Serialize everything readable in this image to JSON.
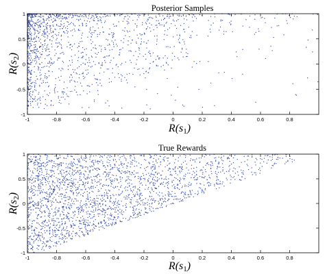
{
  "chart_data": [
    {
      "type": "scatter",
      "title": "Posterior Samples",
      "xlabel": "R(s",
      "xlabel_sub": "1",
      "xlabel_close": ")",
      "ylabel": "R(s",
      "ylabel_sub": "2",
      "ylabel_close": ")",
      "xlim": [
        -1,
        1
      ],
      "ylim": [
        -1,
        1
      ],
      "xticks": [
        "-1",
        "-0.8",
        "-0.6",
        "-0.4",
        "-0.2",
        "0",
        "0.2",
        "0.4",
        "0.6",
        "0.8"
      ],
      "yticks": [
        "1",
        "0.5",
        "0",
        "-0.5",
        "-1"
      ],
      "grid": false,
      "point_color": "#3a4fb0",
      "series": [
        {
          "distribution": "samples concentrated near top-left, sparse toward right",
          "point_count": 1500,
          "seed": 11,
          "points": []
        }
      ]
    },
    {
      "type": "scatter",
      "title": "True Rewards",
      "xlabel": "R(s",
      "xlabel_sub": "1",
      "xlabel_close": ")",
      "ylabel": "R(s",
      "ylabel_sub": "2",
      "ylabel_close": ")",
      "xlim": [
        -1,
        1
      ],
      "ylim": [
        -1,
        1
      ],
      "xticks": [
        "-1",
        "-0.8",
        "-0.6",
        "-0.4",
        "-0.2",
        "0",
        "0.2",
        "0.4",
        "0.6",
        "0.8"
      ],
      "yticks": [
        "1",
        "0.5",
        "0",
        "-0.5",
        "-1"
      ],
      "grid": false,
      "point_color": "#3a4fb0",
      "series": [
        {
          "distribution": "uniform points bounded by upper-left triangle region",
          "point_count": 2400,
          "seed": 23,
          "points": []
        }
      ]
    }
  ]
}
